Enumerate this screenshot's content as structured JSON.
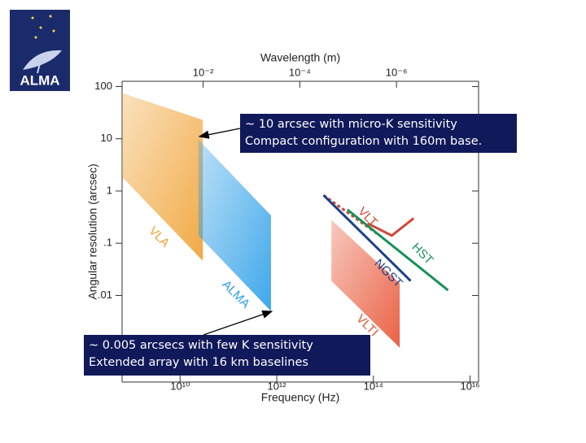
{
  "logo": {
    "text": "ALMA"
  },
  "chart_data": {
    "type": "log-regions",
    "x_label": "Frequency (Hz)",
    "x2_label": "Wavelength (m)",
    "y_label": "Angular resolution (arcsec)",
    "xlim": [
      630000000.0,
      1.5e+16
    ],
    "ylim": [
      0.00022,
      126
    ],
    "x2lim": [
      0.476,
      2e-08
    ],
    "xscale": "log",
    "yscale": "log",
    "xticks": [
      {
        "value": 10000000000.0,
        "label": "10¹⁰"
      },
      {
        "value": 1000000000000.0,
        "label": "10¹²"
      },
      {
        "value": 100000000000000.0,
        "label": "10¹⁴"
      },
      {
        "value": 1e+16,
        "label": "10¹⁶"
      }
    ],
    "x2ticks": [
      {
        "value": 0.01,
        "label": "10⁻²"
      },
      {
        "value": 0.0001,
        "label": "10⁻⁴"
      },
      {
        "value": 1e-06,
        "label": "10⁻⁶"
      }
    ],
    "yticks": [
      100,
      10,
      1,
      {
        "value": 0.1,
        "label": ".1"
      },
      {
        "value": 0.01,
        "label": ".01"
      }
    ],
    "regions": [
      {
        "name": "VLA",
        "color": "#f0a030",
        "x": [
          630000000.0,
          29500000000.0
        ],
        "top": [
          75,
          23
        ],
        "bottom": [
          1.85,
          0.046
        ]
      },
      {
        "name": "ALMA",
        "color": "#2a9ee8",
        "x": [
          24000000000.0,
          760000000000.0
        ],
        "top": [
          9.6,
          0.34
        ],
        "bottom": [
          0.14,
          0.005
        ]
      },
      {
        "name": "VLTI",
        "color": "#e85030",
        "x": [
          13500000000000.0,
          350000000000000.0
        ],
        "top": [
          0.28,
          0.017
        ],
        "bottom": [
          0.019,
          0.001
        ]
      }
    ],
    "series": [
      {
        "name": "VLT",
        "color": "#d04838",
        "x": [
          9300000000000.0,
          135000000000000.0
        ],
        "values": [
          0.83,
          0.14
        ]
      },
      {
        "name": "NGST",
        "color": "#1e3f8a",
        "x": [
          9300000000000.0,
          590000000000000.0
        ],
        "values": [
          0.83,
          0.019
        ]
      },
      {
        "name": "HST",
        "color": "#16935a",
        "x": [
          29000000000000.0,
          3500000000000000.0
        ],
        "values": [
          0.44,
          0.0126
        ]
      },
      {
        "color": "#d04838",
        "x": [
          76000000000000.0,
          240000000000000.0,
          680000000000000.0
        ],
        "values": [
          0.24,
          0.14,
          0.3
        ]
      }
    ],
    "annotations": [
      {
        "lines": [
          "~ 10 arcsec with micro-K sensitivity",
          "Compact configuration with 160m base."
        ]
      },
      {
        "lines": [
          "~ 0.005 arcsecs with few K sensitivity",
          "Extended array with 16 km baselines"
        ]
      }
    ]
  }
}
